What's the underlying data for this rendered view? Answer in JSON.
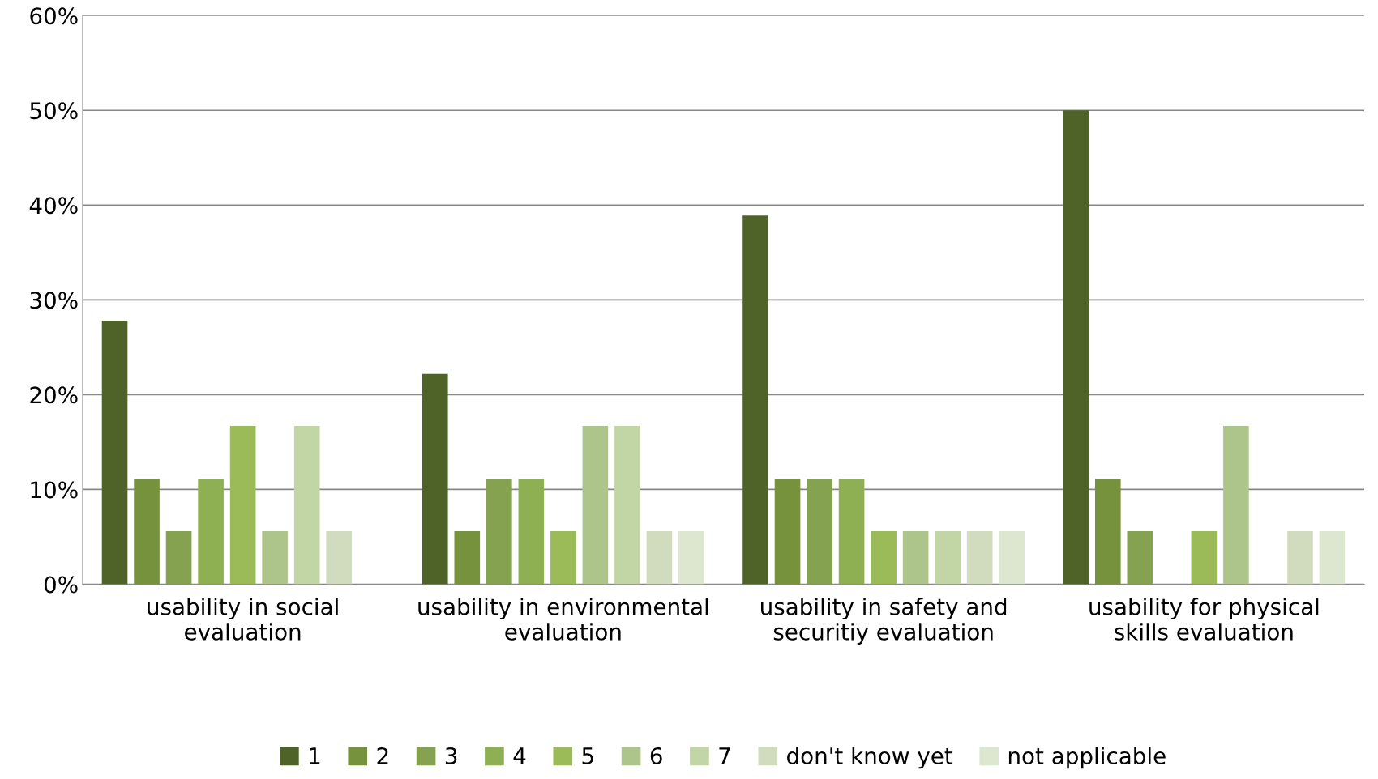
{
  "chart_data": {
    "type": "bar",
    "categories": [
      "usability in social evaluation",
      "usability in environmental evaluation",
      "usability in safety and securitiy evaluation",
      "usability for physical skills evaluation"
    ],
    "series": [
      {
        "name": "1",
        "color": "#4f6228",
        "values": [
          27.8,
          22.2,
          38.9,
          50
        ]
      },
      {
        "name": "2",
        "color": "#76923c",
        "values": [
          11.1,
          5.6,
          11.1,
          11.1
        ]
      },
      {
        "name": "3",
        "color": "#84a24f",
        "values": [
          5.6,
          11.1,
          11.1,
          5.6
        ]
      },
      {
        "name": "4",
        "color": "#8fb052",
        "values": [
          11.1,
          11.1,
          11.1,
          0
        ]
      },
      {
        "name": "5",
        "color": "#9bbb59",
        "values": [
          16.7,
          5.6,
          5.6,
          5.6
        ]
      },
      {
        "name": "6",
        "color": "#adc58a",
        "values": [
          5.6,
          16.7,
          5.6,
          16.7
        ]
      },
      {
        "name": "7",
        "color": "#c2d5a4",
        "values": [
          16.7,
          16.7,
          5.6,
          0
        ]
      },
      {
        "name": "don't know yet",
        "color": "#d1dcbe",
        "values": [
          5.6,
          5.6,
          5.6,
          5.6
        ]
      },
      {
        "name": "not applicable",
        "color": "#dde7cf",
        "values": [
          0,
          5.6,
          5.6,
          5.6
        ]
      }
    ],
    "ylim": [
      0,
      60
    ],
    "yticks": [
      {
        "value": 0,
        "label": "0%"
      },
      {
        "value": 10,
        "label": "10%"
      },
      {
        "value": 20,
        "label": "20%"
      },
      {
        "value": 30,
        "label": "30%"
      },
      {
        "value": 40,
        "label": "40%"
      },
      {
        "value": 50,
        "label": "50%"
      },
      {
        "value": 60,
        "label": "60%"
      }
    ],
    "grid": "y",
    "legend": "bottom"
  }
}
